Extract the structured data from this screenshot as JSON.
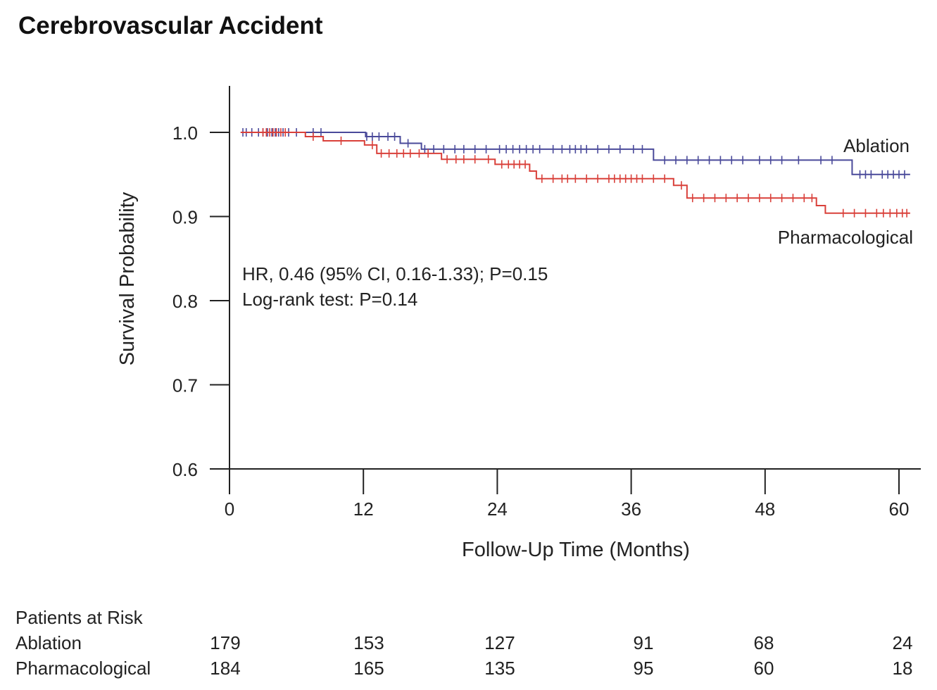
{
  "chart_data": {
    "type": "line",
    "title": "Cerebrovascular Accident",
    "xlabel": "Follow-Up Time (Months)",
    "ylabel": "Survival Probability",
    "xlim": [
      0,
      61
    ],
    "ylim": [
      0.6,
      1.05
    ],
    "x_ticks": [
      0,
      12,
      24,
      36,
      48,
      60
    ],
    "y_ticks": [
      0.6,
      0.7,
      0.8,
      0.9,
      1.0
    ],
    "x_tick_labels": [
      "0",
      "12",
      "24",
      "36",
      "48",
      "60"
    ],
    "y_tick_labels": [
      "0.6",
      "0.7",
      "0.8",
      "0.9",
      "1.0"
    ],
    "annotations": [
      "HR, 0.46 (95% CI, 0.16-1.33); P=0.15",
      "Log-rank test: P=0.14"
    ],
    "series": [
      {
        "name": "Ablation",
        "color": "#4a4a9a",
        "steps": [
          [
            1,
            1.0
          ],
          [
            12.2,
            0.995
          ],
          [
            15.3,
            0.987
          ],
          [
            17.2,
            0.98
          ],
          [
            38,
            0.967
          ],
          [
            55.8,
            0.95
          ],
          [
            61,
            0.95
          ]
        ],
        "censor": [
          1.2,
          1.5,
          2.0,
          2.6,
          3.0,
          3.4,
          3.8,
          4.1,
          4.4,
          4.8,
          5.3,
          6.0,
          7.5,
          8.2,
          12.3,
          12.8,
          13.4,
          14.2,
          14.8,
          16.0,
          17.5,
          18.3,
          19.2,
          20.2,
          21.0,
          22.0,
          23.0,
          24.2,
          24.8,
          25.4,
          26.0,
          26.6,
          27.2,
          27.8,
          29.0,
          29.8,
          30.5,
          31.0,
          31.5,
          32.0,
          33.0,
          34.0,
          35.0,
          36.2,
          37.0,
          39.0,
          40.0,
          41.0,
          42.0,
          43.0,
          44.0,
          45.0,
          46.0,
          47.5,
          48.5,
          49.5,
          51.0,
          53.0,
          54.0,
          56.5,
          57.0,
          57.5,
          58.5,
          59.0,
          59.5,
          60.0,
          60.5
        ],
        "label": "Ablation"
      },
      {
        "name": "Pharmacological",
        "color": "#d9403a",
        "steps": [
          [
            1,
            1.0
          ],
          [
            6.8,
            0.995
          ],
          [
            8.4,
            0.99
          ],
          [
            12.1,
            0.985
          ],
          [
            13.2,
            0.975
          ],
          [
            19.0,
            0.968
          ],
          [
            23.8,
            0.962
          ],
          [
            26.9,
            0.954
          ],
          [
            27.5,
            0.945
          ],
          [
            39.8,
            0.937
          ],
          [
            41.0,
            0.922
          ],
          [
            52.6,
            0.913
          ],
          [
            53.4,
            0.904
          ],
          [
            61,
            0.904
          ]
        ],
        "censor": [
          3.0,
          3.3,
          3.6,
          3.9,
          4.2,
          4.6,
          5.0,
          7.5,
          10.0,
          12.8,
          13.6,
          14.3,
          15.0,
          15.6,
          16.2,
          17.0,
          17.8,
          19.5,
          20.3,
          21.0,
          22.0,
          23.2,
          24.4,
          25.0,
          25.5,
          26.0,
          26.5,
          28.0,
          29.0,
          29.8,
          30.3,
          31.0,
          32.0,
          33.0,
          34.0,
          34.5,
          35.0,
          35.5,
          36.0,
          36.5,
          37.0,
          38.0,
          39.0,
          40.5,
          41.5,
          42.5,
          43.5,
          44.5,
          45.5,
          46.5,
          47.5,
          48.5,
          49.5,
          50.5,
          51.5,
          52.2,
          55.0,
          56.0,
          57.0,
          58.0,
          58.6,
          59.2,
          59.8,
          60.3,
          60.7
        ],
        "label": "Pharmacological"
      }
    ]
  },
  "risk_table": {
    "title": "Patients at Risk",
    "rows": [
      {
        "label": "Ablation",
        "values": [
          "179",
          "153",
          "127",
          "91",
          "68",
          "24"
        ]
      },
      {
        "label": "Pharmacological",
        "values": [
          "184",
          "165",
          "135",
          "95",
          "60",
          "18"
        ]
      }
    ]
  }
}
